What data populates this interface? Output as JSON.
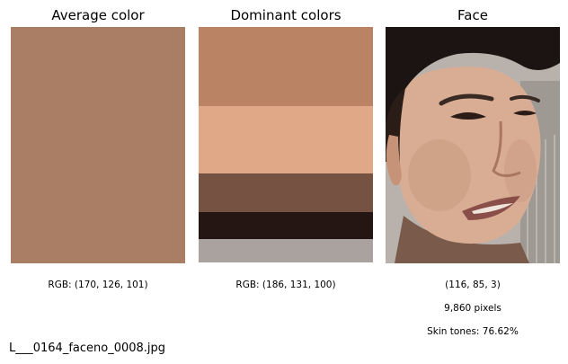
{
  "panels": {
    "average": {
      "title": "Average color",
      "rgb_label": "RGB: (170, 126, 101)",
      "color": "#aa7e65"
    },
    "dominant": {
      "title": "Dominant colors",
      "rgb_label": "RGB: (186, 131, 100)",
      "bands": [
        {
          "color": "#ba8364",
          "fraction": 0.335
        },
        {
          "color": "#e0a886",
          "fraction": 0.285
        },
        {
          "color": "#765243",
          "fraction": 0.165
        },
        {
          "color": "#261613",
          "fraction": 0.115
        },
        {
          "color": "#aaa29f",
          "fraction": 0.1
        }
      ]
    },
    "face": {
      "title": "Face",
      "shape": "(116, 85, 3)",
      "pixels": "9,860 pixels",
      "skin_tones": "Skin tones: 76.62%"
    }
  },
  "filename": "L___0164_faceno_0008.jpg"
}
